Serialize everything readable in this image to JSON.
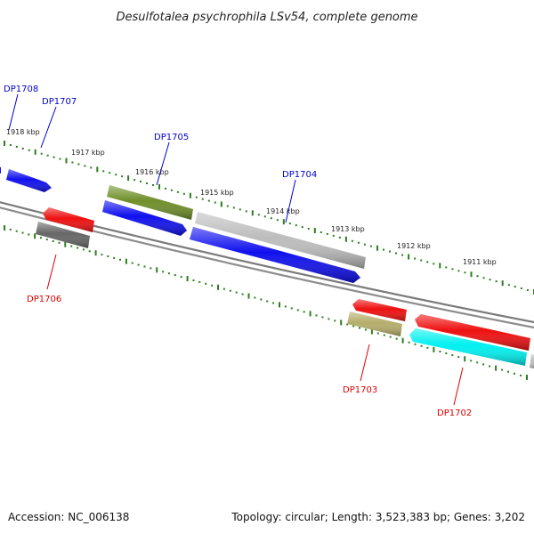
{
  "title": "Desulfotalea psychrophila LSv54, complete genome",
  "footer": {
    "accession": "Accession: NC_006138",
    "summary": "Topology: circular; Length: 3,523,383 bp; Genes: 3,202"
  },
  "colors": {
    "forward_label": "#0000cc",
    "reverse_label": "#dd0000",
    "tick": "#2e7d1e",
    "backbone": "#808080"
  },
  "scale_ticks": [
    {
      "label": "1918 kbp"
    },
    {
      "label": "1917 kbp"
    },
    {
      "label": "1916 kbp"
    },
    {
      "label": "1915 kbp"
    },
    {
      "label": "1914 kbp"
    },
    {
      "label": "1913 kbp"
    },
    {
      "label": "1912 kbp"
    },
    {
      "label": "1911 kbp"
    }
  ],
  "gene_labels": [
    {
      "name": "DP1708",
      "strand": "forward"
    },
    {
      "name": "DP1707",
      "strand": "forward"
    },
    {
      "name": "DP1705",
      "strand": "forward"
    },
    {
      "name": "DP1704",
      "strand": "forward"
    },
    {
      "name": "DP1706",
      "strand": "reverse"
    },
    {
      "name": "DP1703",
      "strand": "reverse"
    },
    {
      "name": "DP1702",
      "strand": "reverse"
    }
  ],
  "features": [
    {
      "color": "#1010ee",
      "direction": "right",
      "track": "forward-outer"
    },
    {
      "color": "#6f8f2a",
      "direction": "none",
      "track": "forward-outer"
    },
    {
      "color": "#1010ee",
      "direction": "right",
      "track": "forward-inner"
    },
    {
      "color": "#bdbdbd",
      "direction": "none",
      "track": "forward-outer"
    },
    {
      "color": "#1010ee",
      "direction": "right",
      "track": "forward-inner"
    },
    {
      "color": "#ee1010",
      "direction": "left",
      "track": "reverse-inner"
    },
    {
      "color": "#666666",
      "direction": "none",
      "track": "reverse-outer"
    },
    {
      "color": "#ee1010",
      "direction": "left",
      "track": "reverse-inner"
    },
    {
      "color": "#b5ad6a",
      "direction": "none",
      "track": "reverse-outer"
    },
    {
      "color": "#ee1010",
      "direction": "left",
      "track": "reverse-inner"
    },
    {
      "color": "#00f0f0",
      "direction": "left",
      "track": "reverse-outer"
    },
    {
      "color": "#bdbdbd",
      "direction": "none",
      "track": "reverse-outer"
    }
  ]
}
